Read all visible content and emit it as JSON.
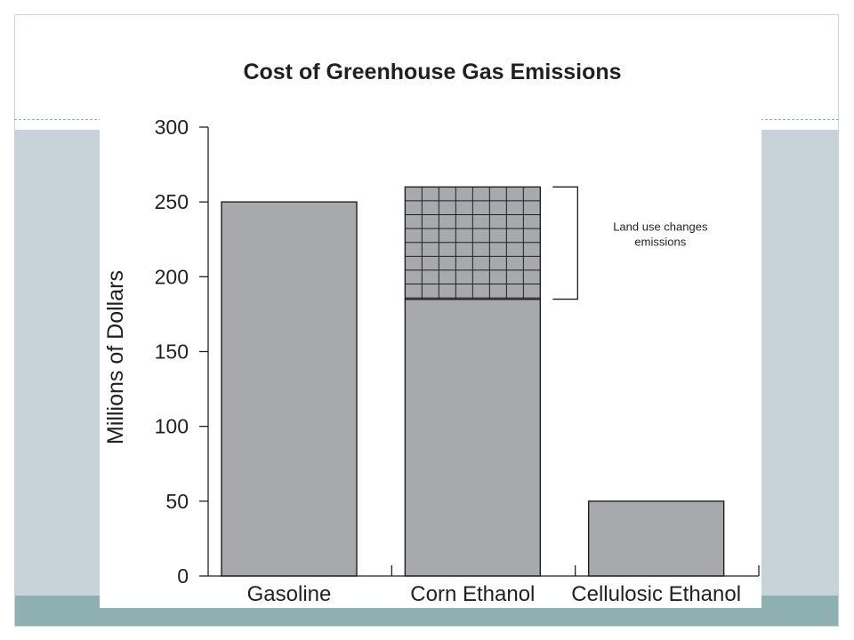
{
  "chart_data": {
    "type": "bar",
    "title": "Cost of Greenhouse Gas Emissions",
    "ylabel": "Millions of Dollars",
    "xlabel": "",
    "categories": [
      "Gasoline",
      "Corn Ethanol",
      "Cellulosic Ethanol"
    ],
    "series": [
      {
        "name": "",
        "values": [
          250,
          185,
          50
        ],
        "color": "#a7a9ac"
      },
      {
        "name": "",
        "values": [
          0,
          75,
          0
        ],
        "color": "#a7a9ac",
        "pattern": "grid"
      }
    ],
    "stacked": true,
    "ylim": [
      0,
      300
    ],
    "yticks": [
      0,
      50,
      100,
      150,
      200,
      250,
      300
    ],
    "grid": false,
    "legend": "none",
    "annotation": {
      "lines": [
        "Land use changes",
        "emissions"
      ],
      "category": "Corn Ethanol",
      "range": [
        185,
        260
      ]
    }
  },
  "colors": {
    "bar_fill": "#a7a9ac",
    "bar_stroke": "#231f20",
    "slide_band": "#c7d3d9",
    "slide_footer": "#8fb0b0"
  }
}
